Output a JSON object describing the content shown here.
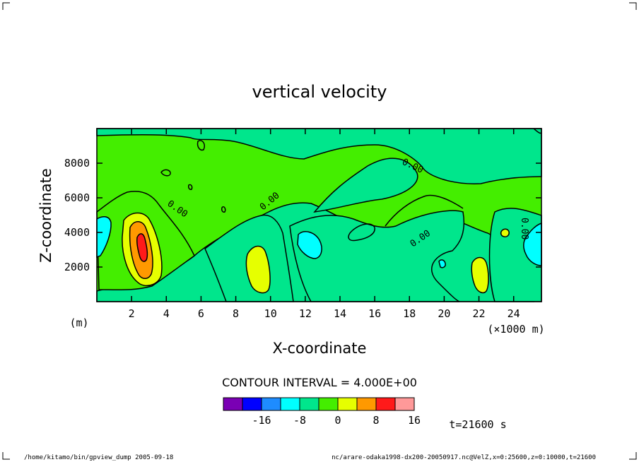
{
  "chart_data": {
    "type": "contour",
    "title": "vertical velocity",
    "xlabel": "X-coordinate",
    "ylabel": "Z-coordinate",
    "x_unit": "(×1000 m)",
    "y_unit": "(m)",
    "x_ticks": [
      2,
      4,
      6,
      8,
      10,
      12,
      14,
      16,
      18,
      20,
      22,
      24
    ],
    "y_ticks": [
      2000,
      4000,
      6000,
      8000
    ],
    "xlim": [
      0,
      25.6
    ],
    "ylim": [
      0,
      10000
    ],
    "contour_interval_text": "CONTOUR INTERVAL = 4.000E+00",
    "contour_labels": [
      "0.00",
      "0.00",
      "0.00",
      "0.00",
      "0.00"
    ],
    "time_text": "t=21600 s",
    "colorbar": {
      "colors": [
        "#7a00b4",
        "#0000ff",
        "#1e8cff",
        "#00ffff",
        "#00e68c",
        "#44ee00",
        "#e6ff00",
        "#ff9900",
        "#ff1a1a",
        "#ff9999"
      ],
      "tick_labels": [
        "-16",
        "-8",
        "0",
        "8",
        "16"
      ]
    },
    "footer_left": "/home/kitamo/bin/gpview_dump  2005-09-18",
    "footer_right": "nc/arare-odaka1998-dx200-20050917.nc@VelZ,x=0:25600,z=0:10000,t=21600"
  }
}
